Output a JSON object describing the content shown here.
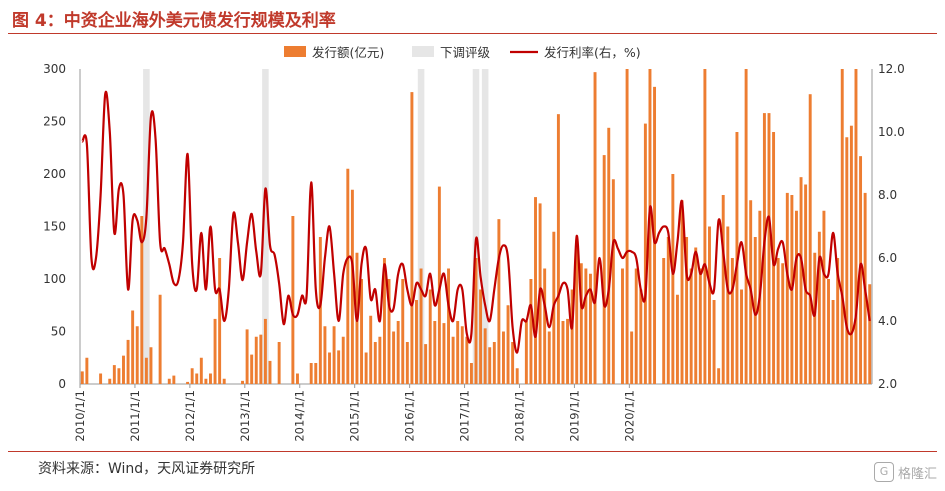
{
  "title": "图 4：中资企业海外美元债发行规模及利率",
  "source": "资料来源：Wind，天风证券研究所",
  "watermark": {
    "brand_text": "格隆汇",
    "logo_letter": "G"
  },
  "chart_data": {
    "type": "bar+line",
    "colors": {
      "bar": "#ed7d31",
      "band": "#e6e6e6",
      "line": "#c00000"
    },
    "legend": [
      "发行额(亿元)",
      "下调评级",
      "发行利率(右，%)"
    ],
    "legend_position": "top-center",
    "x_ticks": [
      "2010/1/1",
      "2011/1/1",
      "2012/1/1",
      "2013/1/1",
      "2014/1/1",
      "2015/1/1",
      "2016/1/1",
      "2017/1/1",
      "2018/1/1",
      "2019/1/1",
      "2020/1/1"
    ],
    "y_left": {
      "min": 0,
      "max": 300,
      "ticks": [
        0,
        50,
        100,
        150,
        200,
        250,
        300
      ]
    },
    "y_right": {
      "min": 2.0,
      "max": 12.0,
      "ticks": [
        "2.0",
        "4.0",
        "6.0",
        "8.0",
        "10.0",
        "12.0"
      ]
    },
    "x_start": "2010-01",
    "downgrade_months": [
      "2011-03",
      "2013-05",
      "2016-03",
      "2017-03",
      "2017-05"
    ],
    "issuance": [
      12,
      25,
      0,
      0,
      10,
      0,
      5,
      18,
      15,
      27,
      42,
      70,
      55,
      160,
      25,
      35,
      0,
      85,
      0,
      5,
      8,
      0,
      0,
      2,
      15,
      10,
      25,
      5,
      10,
      62,
      120,
      5,
      0,
      0,
      0,
      3,
      52,
      28,
      45,
      47,
      62,
      22,
      0,
      40,
      0,
      0,
      160,
      10,
      0,
      0,
      20,
      20,
      140,
      55,
      30,
      55,
      32,
      45,
      205,
      185,
      125,
      100,
      30,
      65,
      40,
      45,
      120,
      100,
      50,
      60,
      100,
      40,
      278,
      80,
      110,
      38,
      90,
      60,
      188,
      58,
      110,
      45,
      60,
      55,
      45,
      20,
      120,
      90,
      53,
      35,
      40,
      157,
      50,
      75,
      40,
      15,
      0,
      60,
      100,
      178,
      172,
      110,
      50,
      145,
      257,
      60,
      62,
      90,
      137,
      115,
      110,
      105,
      297,
      0,
      218,
      244,
      195,
      0,
      110,
      300,
      50,
      110,
      90,
      248,
      300,
      283,
      0,
      120,
      140,
      200,
      85,
      175,
      140,
      110,
      130,
      110,
      300,
      150,
      80,
      15,
      180,
      150,
      120,
      240,
      90,
      300,
      175,
      140,
      165,
      258,
      258,
      240,
      120,
      115,
      182,
      180,
      165,
      197,
      190,
      276,
      125,
      145,
      165,
      100,
      80,
      120,
      300,
      235,
      246,
      300,
      217,
      182,
      95
    ],
    "rate": [
      9.7,
      9.6,
      6.0,
      6.0,
      8.0,
      11.2,
      10.0,
      6.8,
      8.2,
      8.0,
      5.0,
      7.2,
      7.2,
      6.5,
      7.3,
      10.5,
      9.8,
      6.5,
      6.3,
      5.8,
      5.2,
      5.3,
      6.5,
      9.3,
      5.8,
      5.0,
      6.8,
      5.0,
      7.0,
      5.0,
      5.0,
      4.0,
      5.0,
      7.4,
      6.5,
      5.3,
      6.5,
      7.4,
      6.2,
      5.5,
      8.2,
      6.4,
      6.1,
      5.2,
      3.9,
      4.8,
      4.2,
      4.2,
      4.8,
      4.8,
      8.4,
      5.0,
      4.5,
      6.0,
      7.0,
      5.5,
      4.0,
      5.5,
      6.0,
      5.8,
      4.0,
      5.8,
      6.3,
      4.7,
      5.0,
      4.0,
      5.8,
      4.5,
      4.4,
      5.5,
      5.8,
      5.0,
      4.5,
      5.2,
      5.0,
      4.8,
      5.5,
      4.5,
      5.0,
      5.5,
      4.5,
      4.0,
      5.0,
      5.0,
      3.6,
      3.6,
      6.6,
      5.4,
      4.5,
      4.0,
      5.0,
      6.0,
      6.4,
      6.0,
      3.8,
      3.0,
      4.0,
      4.0,
      4.5,
      3.5,
      5.0,
      4.5,
      3.8,
      4.5,
      4.8,
      5.2,
      5.0,
      3.8,
      6.7,
      4.5,
      4.8,
      5.0,
      4.6,
      6.0,
      4.5,
      5.0,
      6.5,
      6.3,
      6.0,
      6.2,
      6.2,
      6.0,
      5.0,
      4.8,
      7.6,
      6.5,
      6.8,
      7.0,
      6.8,
      5.5,
      6.5,
      7.8,
      5.5,
      5.5,
      6.2,
      5.5,
      5.8,
      5.2,
      5.0,
      7.2,
      6.2,
      5.0,
      5.0,
      5.8,
      6.5,
      5.5,
      5.0,
      4.2,
      4.8,
      6.5,
      7.3,
      5.8,
      6.3,
      6.5,
      5.5,
      5.0,
      6.0,
      6.0,
      5.0,
      4.8,
      4.2,
      6.0,
      5.5,
      5.5,
      6.8,
      5.5,
      4.8,
      3.8,
      3.6,
      4.2,
      5.8,
      5.0,
      4.0
    ]
  }
}
